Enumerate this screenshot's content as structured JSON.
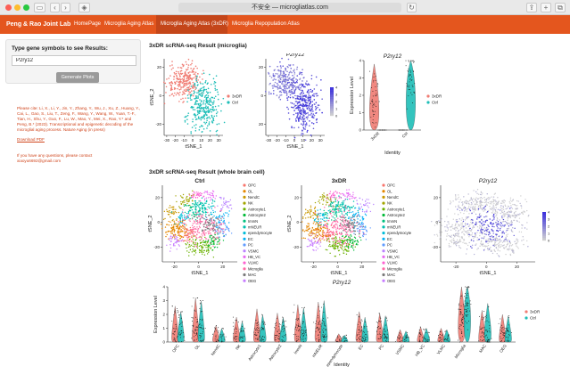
{
  "browser": {
    "address": "不安全 — microgliatlas.com"
  },
  "nav": {
    "brand": "Peng & Rao Joint Lab",
    "items": [
      "HomePage",
      "Microglia Aging Atlas",
      "Microglia Aging Atlas (3xDR)",
      "Microglia Repopulation Atlas"
    ]
  },
  "sidebar": {
    "gene_label": "Type gene symbols to see Results:",
    "gene_value": "P2ry12",
    "generate_button": "Generate Plots"
  },
  "citation": {
    "text": "Please cite: Li, X., Li, Y., Jin, Y., Zhang, Y., Wu, J., Xu, Z., Huang, Y., Cai, L., Gao, S., Liu, T., Zeng, F., Wang, Y., Wang, W., Yuan, T.-F., Tian, H., Shu, Y., Guo, F., Lu, W., Mao, Y., Mei, X., Rao, Y.* and Peng, B.* (2023). Transcriptional and epigenetic decoding of the microglial aging process. Nature Aging (in press)",
    "download": "Download PDF",
    "contact": "If you have any questions, please contact xiaoyu6692@gmail.com"
  },
  "sections": {
    "microglia_title": "3xDR scRNA-seq Result (microglia)",
    "whole_title": "3xDR scRNA-seq Result (whole brain cell)"
  },
  "colors": {
    "dr": "#f07c73",
    "ctrl": "#1fbeb8",
    "expr_high": "#3a2fdc",
    "expr_low": "#d0d0d0"
  },
  "chart_data": [
    {
      "type": "scatter",
      "panel": "microglia-umap",
      "title": "",
      "xlabel": "tSNE_1",
      "ylabel": "tSNE_2",
      "xticks": [
        -30,
        -20,
        -10,
        0,
        10,
        20,
        30
      ],
      "yticks": [
        -20,
        0,
        20
      ],
      "xlim": [
        -33,
        35
      ],
      "ylim": [
        -28,
        26
      ],
      "legend": {
        "position": "right",
        "entries": [
          "3xDR",
          "Ctrl"
        ]
      },
      "series": [
        {
          "name": "3xDR",
          "clusters": [
            {
              "cx": -10,
              "cy": 10,
              "sx": 9,
              "sy": 6,
              "n": 260
            }
          ]
        },
        {
          "name": "Ctrl",
          "clusters": [
            {
              "cx": 12,
              "cy": -7,
              "sx": 9,
              "sy": 9,
              "n": 320
            }
          ]
        }
      ]
    },
    {
      "type": "scatter",
      "panel": "microglia-feature",
      "title": "P2ry12",
      "xlabel": "tSNE_1",
      "ylabel": "",
      "xticks": [
        -30,
        -20,
        -10,
        0,
        10,
        20,
        30
      ],
      "yticks": [
        -20,
        0,
        20
      ],
      "xlim": [
        -33,
        35
      ],
      "ylim": [
        -28,
        26
      ],
      "colorbar": {
        "ticks": [
          0,
          1,
          2,
          3,
          4
        ],
        "range": [
          0,
          4
        ]
      },
      "clusters": [
        {
          "cx": -10,
          "cy": 10,
          "sx": 9,
          "sy": 6,
          "n": 260,
          "expr": 0.55
        },
        {
          "cx": 12,
          "cy": -7,
          "sx": 9,
          "sy": 9,
          "n": 320,
          "expr": 0.85
        }
      ]
    },
    {
      "type": "violin",
      "panel": "microglia-violin",
      "title": "P2ry12",
      "xlabel": "Identity",
      "ylabel": "Expression Level",
      "categories": [
        "3xDR",
        "Ctrl"
      ],
      "yticks": [
        0,
        1,
        2,
        3,
        4
      ],
      "ylim": [
        0,
        4
      ],
      "legend": {
        "position": "right",
        "entries": [
          "3xDR",
          "Ctrl"
        ]
      },
      "series": [
        {
          "name": "3xDR",
          "median": 1.6,
          "max": 3.8
        },
        {
          "name": "Ctrl",
          "median": 2.9,
          "max": 4.0
        }
      ]
    },
    {
      "type": "scatter",
      "panel": "whole-ctrl",
      "title": "Ctrl",
      "xlabel": "tSNE_1",
      "ylabel": "tSNE_2",
      "xticks": [
        -20,
        0,
        20
      ],
      "yticks": [
        -20,
        0,
        20
      ],
      "xlim": [
        -30,
        32
      ],
      "ylim": [
        -32,
        30
      ],
      "legend": {
        "position": "right",
        "entries": [
          "OPC",
          "OL",
          "NendC",
          "NK",
          "Astrocyte1",
          "Astrocyte2",
          "ImmN",
          "mNEUR",
          "ependymocyte",
          "EC",
          "PC",
          "VSMC",
          "HB_VC",
          "VLMC",
          "Microglia",
          "MAC",
          "OEG"
        ]
      },
      "clusters": [
        {
          "label": "OPC",
          "cx": -8,
          "cy": -10,
          "sx": 3,
          "sy": 3,
          "n": 50
        },
        {
          "label": "OL",
          "cx": -18,
          "cy": -6,
          "sx": 5,
          "sy": 4,
          "n": 120
        },
        {
          "label": "NendC",
          "cx": -22,
          "cy": 8,
          "sx": 3,
          "sy": 3,
          "n": 40
        },
        {
          "label": "NK",
          "cx": -10,
          "cy": 18,
          "sx": 4,
          "sy": 3,
          "n": 40
        },
        {
          "label": "Astrocyte1",
          "cx": 2,
          "cy": -18,
          "sx": 6,
          "sy": 4,
          "n": 110
        },
        {
          "label": "Astrocyte2",
          "cx": 12,
          "cy": -16,
          "sx": 4,
          "sy": 3,
          "n": 50
        },
        {
          "label": "ImmN",
          "cx": -4,
          "cy": 8,
          "sx": 4,
          "sy": 4,
          "n": 50
        },
        {
          "label": "mNEUR",
          "cx": 4,
          "cy": 12,
          "sx": 5,
          "sy": 4,
          "n": 90
        },
        {
          "label": "ependymocyte",
          "cx": -14,
          "cy": 4,
          "sx": 3,
          "sy": 3,
          "n": 40
        },
        {
          "label": "EC",
          "cx": 16,
          "cy": 4,
          "sx": 4,
          "sy": 4,
          "n": 50
        },
        {
          "label": "PC",
          "cx": 20,
          "cy": -6,
          "sx": 3,
          "sy": 3,
          "n": 40
        },
        {
          "label": "VSMC",
          "cx": 22,
          "cy": 14,
          "sx": 3,
          "sy": 3,
          "n": 30
        },
        {
          "label": "HB_VC",
          "cx": 10,
          "cy": 22,
          "sx": 3,
          "sy": 2,
          "n": 30
        },
        {
          "label": "VLMC",
          "cx": -2,
          "cy": 22,
          "sx": 3,
          "sy": 2,
          "n": 30
        },
        {
          "label": "Microglia",
          "cx": 2,
          "cy": -4,
          "sx": 8,
          "sy": 7,
          "n": 180
        },
        {
          "label": "MAC",
          "cx": 10,
          "cy": -2,
          "sx": 4,
          "sy": 3,
          "n": 60
        },
        {
          "label": "OEG",
          "cx": -20,
          "cy": -16,
          "sx": 3,
          "sy": 3,
          "n": 40
        }
      ]
    },
    {
      "type": "scatter",
      "panel": "whole-3xdr",
      "title": "3xDR",
      "xlabel": "tSNE_1",
      "ylabel": "tSNE_2",
      "xticks": [
        -20,
        0,
        20
      ],
      "yticks": [
        -20,
        0,
        20
      ],
      "xlim": [
        -30,
        32
      ],
      "ylim": [
        -32,
        30
      ],
      "legend": {
        "position": "right",
        "entries": [
          "OPC",
          "OL",
          "NendC",
          "NK",
          "Astrocyte1",
          "Astrocyte2",
          "ImmN",
          "mNEUR",
          "ependymocyte",
          "EC",
          "PC",
          "VSMC",
          "HB_VC",
          "VLMC",
          "Microglia",
          "MAC",
          "OEG"
        ]
      },
      "clusters": [
        {
          "label": "OPC",
          "cx": -8,
          "cy": -10,
          "sx": 3,
          "sy": 3,
          "n": 50
        },
        {
          "label": "OL",
          "cx": -18,
          "cy": -6,
          "sx": 5,
          "sy": 4,
          "n": 120
        },
        {
          "label": "NendC",
          "cx": -22,
          "cy": 8,
          "sx": 3,
          "sy": 3,
          "n": 40
        },
        {
          "label": "NK",
          "cx": -10,
          "cy": 18,
          "sx": 4,
          "sy": 3,
          "n": 40
        },
        {
          "label": "Astrocyte1",
          "cx": 2,
          "cy": -18,
          "sx": 6,
          "sy": 4,
          "n": 110
        },
        {
          "label": "Astrocyte2",
          "cx": 12,
          "cy": -16,
          "sx": 4,
          "sy": 3,
          "n": 50
        },
        {
          "label": "ImmN",
          "cx": -4,
          "cy": 8,
          "sx": 4,
          "sy": 4,
          "n": 50
        },
        {
          "label": "mNEUR",
          "cx": 4,
          "cy": 12,
          "sx": 5,
          "sy": 4,
          "n": 90
        },
        {
          "label": "ependymocyte",
          "cx": -14,
          "cy": 4,
          "sx": 3,
          "sy": 3,
          "n": 40
        },
        {
          "label": "EC",
          "cx": 16,
          "cy": 4,
          "sx": 4,
          "sy": 4,
          "n": 50
        },
        {
          "label": "PC",
          "cx": 20,
          "cy": -6,
          "sx": 3,
          "sy": 3,
          "n": 40
        },
        {
          "label": "VSMC",
          "cx": 22,
          "cy": 14,
          "sx": 3,
          "sy": 3,
          "n": 30
        },
        {
          "label": "HB_VC",
          "cx": 10,
          "cy": 22,
          "sx": 3,
          "sy": 2,
          "n": 30
        },
        {
          "label": "VLMC",
          "cx": -2,
          "cy": 22,
          "sx": 3,
          "sy": 2,
          "n": 30
        },
        {
          "label": "Microglia",
          "cx": 2,
          "cy": -4,
          "sx": 8,
          "sy": 7,
          "n": 180
        },
        {
          "label": "MAC",
          "cx": 10,
          "cy": -2,
          "sx": 4,
          "sy": 3,
          "n": 60
        },
        {
          "label": "OEG",
          "cx": -20,
          "cy": -16,
          "sx": 3,
          "sy": 3,
          "n": 40
        }
      ]
    },
    {
      "type": "scatter",
      "panel": "whole-feature",
      "title": "P2ry12",
      "xlabel": "tSNE_1",
      "ylabel": "",
      "xticks": [
        -20,
        0,
        20
      ],
      "yticks": [
        -20,
        0,
        20
      ],
      "xlim": [
        -30,
        32
      ],
      "ylim": [
        -32,
        30
      ],
      "colorbar": {
        "ticks": [
          0,
          1,
          2,
          3,
          4
        ],
        "range": [
          0,
          4
        ]
      },
      "clusters": [
        {
          "cx": -16,
          "cy": -6,
          "sx": 8,
          "sy": 6,
          "n": 200,
          "expr": 0.02
        },
        {
          "cx": -10,
          "cy": 16,
          "sx": 6,
          "sy": 4,
          "n": 110,
          "expr": 0.02
        },
        {
          "cx": 4,
          "cy": 14,
          "sx": 7,
          "sy": 5,
          "n": 150,
          "expr": 0.02
        },
        {
          "cx": 8,
          "cy": -18,
          "sx": 8,
          "sy": 4,
          "n": 170,
          "expr": 0.02
        },
        {
          "cx": 2,
          "cy": -4,
          "sx": 8,
          "sy": 7,
          "n": 180,
          "expr": 0.8
        },
        {
          "cx": 18,
          "cy": 4,
          "sx": 5,
          "sy": 8,
          "n": 120,
          "expr": 0.02
        },
        {
          "cx": -20,
          "cy": -16,
          "sx": 3,
          "sy": 3,
          "n": 40,
          "expr": 0.02
        }
      ]
    },
    {
      "type": "violin",
      "panel": "whole-violin",
      "title": "P2ry12",
      "xlabel": "Identity",
      "ylabel": "Expression Level",
      "categories": [
        "OPC",
        "OL",
        "NendC",
        "NK",
        "Astrocyte1",
        "Astrocyte2",
        "ImmN",
        "mNEUR",
        "ependymocyte",
        "EC",
        "PC",
        "VSMC",
        "HB_VC",
        "VLMC",
        "Microglia",
        "MAC",
        "OEG"
      ],
      "yticks": [
        0,
        1,
        2,
        3,
        4
      ],
      "ylim": [
        0,
        4
      ],
      "legend": {
        "position": "right",
        "entries": [
          "3xDR",
          "Ctrl"
        ]
      },
      "series": [
        {
          "name": "3xDR",
          "medians": [
            0,
            0,
            0,
            0,
            0,
            0,
            0,
            0,
            0,
            0,
            0,
            0,
            0,
            0,
            1.6,
            0,
            0
          ],
          "maxes": [
            2.6,
            3.2,
            1.2,
            1.8,
            2.4,
            2.1,
            2.7,
            2.9,
            0.6,
            2.2,
            2.1,
            0.9,
            1.1,
            1.0,
            4.0,
            2.3,
            2.0
          ]
        },
        {
          "name": "Ctrl",
          "medians": [
            0,
            0,
            0,
            0,
            0,
            0,
            0,
            0,
            0,
            0,
            0,
            0,
            0,
            0,
            2.8,
            0.6,
            0
          ],
          "maxes": [
            2.2,
            3.0,
            1.0,
            1.5,
            2.0,
            1.8,
            2.5,
            3.0,
            0.5,
            1.8,
            1.9,
            0.8,
            1.0,
            0.9,
            4.0,
            2.8,
            1.9
          ]
        }
      ]
    }
  ]
}
